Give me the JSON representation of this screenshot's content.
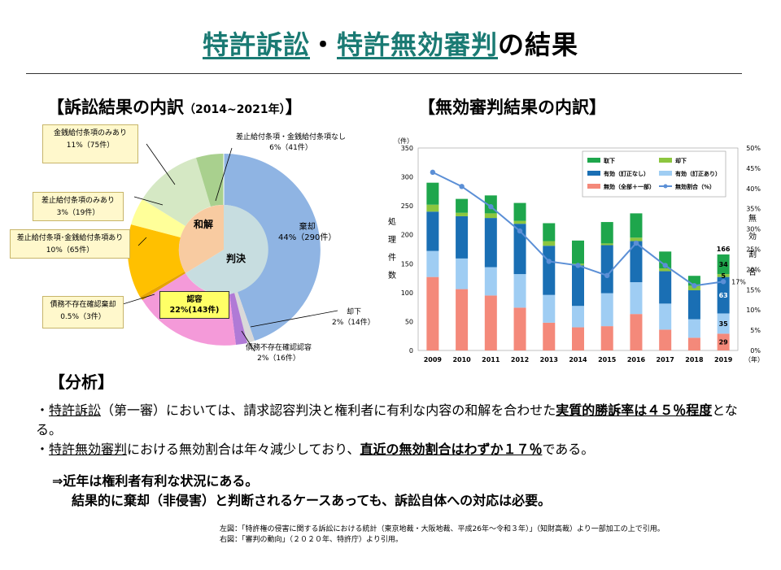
{
  "title": {
    "part1": "特許訴訟",
    "sep": "・",
    "part2": "特許無効審判",
    "part3": "の結果"
  },
  "left_panel": {
    "heading": "【訴訟結果の内訳",
    "heading_years": "（2014~2021年）",
    "heading_close": "】",
    "inner_labels": {
      "settlement": "和解",
      "judgment": "判決"
    },
    "slices": {
      "dismissed": {
        "name": "棄却",
        "value": "44%（290件）"
      },
      "granted": {
        "name": "認容",
        "value": "22%(143件)"
      },
      "no_debt": {
        "name": "債務不存在確認認容",
        "value": "2%（16件）"
      },
      "rejected": {
        "name": "却下",
        "value": "2%（14件）"
      },
      "no_debt_claim": {
        "name": "債務不存在確認棄却",
        "value": "0.5%（3件）"
      },
      "both": {
        "name": "差止給付条項･金銭給付条項あり",
        "value": "10%（65件）"
      },
      "injunction_only": {
        "name": "差止給付条項のみあり",
        "value": "3%（19件）"
      },
      "money_only": {
        "name": "金銭給付条項のみあり",
        "value": "11%（75件）"
      },
      "none": {
        "name": "差止給付条項・金銭給付条項なし",
        "value": "6%（41件）"
      }
    }
  },
  "right_panel": {
    "heading": "【無効審判結果の内訳】"
  },
  "chart_data": {
    "type": "bar",
    "subtype": "stacked bar with line (secondary axis)",
    "categories": [
      "2009",
      "2010",
      "2011",
      "2012",
      "2013",
      "2014",
      "2015",
      "2016",
      "2017",
      "2018",
      "2019"
    ],
    "x_unit": "（年）",
    "y_left": {
      "unit": "（件）",
      "label": "処理件数",
      "ylim": [
        0,
        350
      ],
      "ticks": [
        "0",
        "50",
        "100",
        "150",
        "200",
        "250",
        "300",
        "350"
      ]
    },
    "y_right": {
      "label": "無効割合",
      "ylim": [
        0,
        50
      ],
      "ticks": [
        "0%",
        "5%",
        "10%",
        "15%",
        "20%",
        "25%",
        "30%",
        "35%",
        "40%",
        "45%",
        "50%"
      ]
    },
    "series": [
      {
        "name": "無効（全部＋一部）",
        "color": "#f4897a",
        "values": [
          127,
          106,
          95,
          74,
          48,
          40,
          42,
          63,
          36,
          22,
          29
        ]
      },
      {
        "name": "有効（訂正あり）",
        "color": "#9fcdf3",
        "values": [
          45,
          53,
          49,
          58,
          48,
          37,
          57,
          55,
          45,
          32,
          35
        ]
      },
      {
        "name": "有効（訂正なし）",
        "color": "#1a6fb4",
        "values": [
          68,
          73,
          85,
          87,
          85,
          70,
          83,
          71,
          56,
          50,
          63
        ]
      },
      {
        "name": "却下",
        "color": "#8cc63f",
        "values": [
          12,
          6,
          8,
          5,
          8,
          3,
          3,
          6,
          5,
          8,
          5
        ]
      },
      {
        "name": "取下",
        "color": "#1ea64c",
        "values": [
          38,
          24,
          31,
          31,
          31,
          40,
          37,
          42,
          29,
          17,
          34
        ]
      }
    ],
    "line": {
      "name": "無効割合（%）",
      "color": "#5b8fd6",
      "values": [
        44,
        40.5,
        35.5,
        29.5,
        22,
        21,
        18.5,
        26.5,
        21,
        16,
        17
      ]
    },
    "annotations": {
      "total_2019": "166",
      "rate_2019": "17%"
    }
  },
  "analysis": {
    "heading": "【分析】",
    "line1_a": "・",
    "line1_b": "特許訴訟",
    "line1_c": "（第一審）においては、請求認容判決と権利者に有利な内容の和解を合わせた",
    "line1_d": "実質的勝訴率は４５％程度",
    "line1_e": "となる。",
    "line2_a": "・",
    "line2_b": "特許無効審判",
    "line2_c": "における無効割合は年々減少しており、",
    "line2_d": "直近の無効割合はわずか１７％",
    "line2_e": "である。",
    "conclusion1": "⇒近年は権利者有利な状況にある。",
    "conclusion2": "結果的に棄却（非侵害）と判断されるケースあっても、訴訟自体への対応は必要。"
  },
  "sources": {
    "left": "左図：「特許権の侵害に関する訴訟における統計（東京地裁・大阪地裁、平成26年～令和３年）」（知財高裁）より一部加工の上で引用。",
    "right": "右図：「審判の動向」（２０２０年、特許庁）より引用。"
  }
}
